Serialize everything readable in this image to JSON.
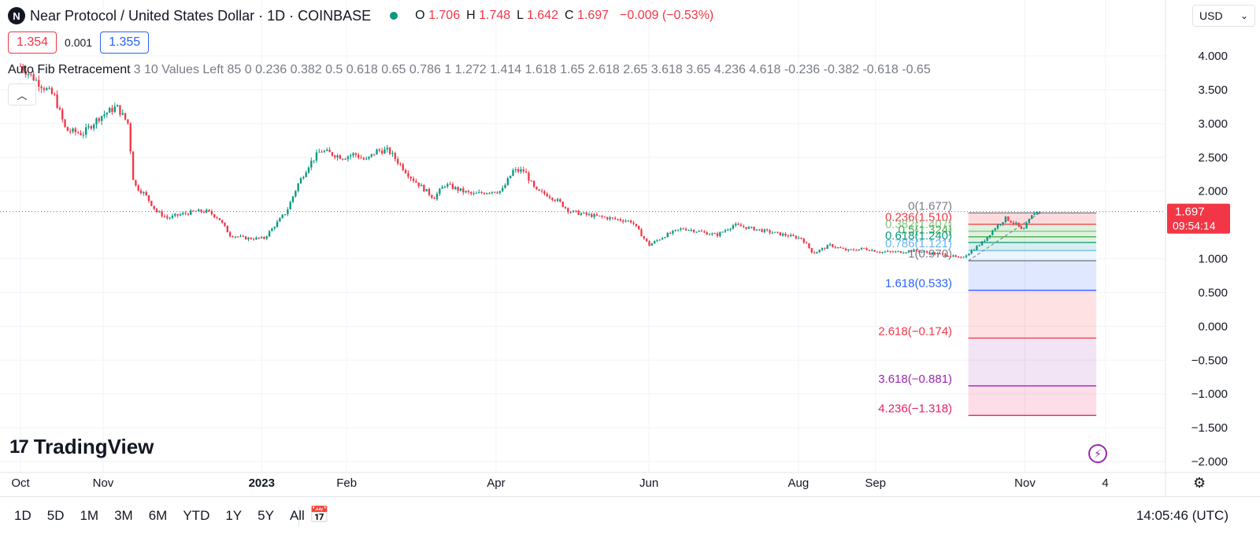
{
  "header": {
    "symbol_title": "Near Protocol / United States Dollar · 1D · COINBASE",
    "logo_letter": "N",
    "o_label": "O",
    "o_value": "1.706",
    "h_label": "H",
    "h_value": "1.748",
    "l_label": "L",
    "l_value": "1.642",
    "c_label": "C",
    "c_value": "1.697",
    "change": "−0.009 (−0.53%)",
    "currency": "USD"
  },
  "quote": {
    "bid": "1.354",
    "spread": "0.001",
    "ask": "1.355"
  },
  "indicator": {
    "name": "Auto Fib Retracement",
    "params": "3 10 Values Left 85 0 0.236 0.382 0.5 0.618 0.65 0.786 1 1.272 1.414 1.618 1.65 2.618 2.65 3.618 3.65 4.236 4.618 -0.236 -0.382 -0.618 -0.65"
  },
  "branding": {
    "wordmark": "TradingView",
    "mark": "17"
  },
  "time_ranges": [
    "1D",
    "5D",
    "1M",
    "3M",
    "6M",
    "YTD",
    "1Y",
    "5Y",
    "All"
  ],
  "clock": "14:05:46 (UTC)",
  "chart_data": {
    "type": "candlestick",
    "y_ticks": [
      "4.000",
      "3.500",
      "3.000",
      "2.500",
      "2.000",
      "1.000",
      "0.500",
      "0.000",
      "−0.500",
      "−1.000",
      "−1.500",
      "−2.000"
    ],
    "y_tick_values": [
      4.0,
      3.5,
      3.0,
      2.5,
      2.0,
      1.0,
      0.5,
      0.0,
      -0.5,
      -1.0,
      -1.5,
      -2.0
    ],
    "ylim": [
      -2.2,
      4.3
    ],
    "x_ticks": [
      {
        "label": "Oct",
        "t": 0,
        "bold": false
      },
      {
        "label": "Nov",
        "t": 0.073,
        "bold": false
      },
      {
        "label": "2023",
        "t": 0.213,
        "bold": true
      },
      {
        "label": "Feb",
        "t": 0.288,
        "bold": false
      },
      {
        "label": "Apr",
        "t": 0.42,
        "bold": false
      },
      {
        "label": "Jun",
        "t": 0.555,
        "bold": false
      },
      {
        "label": "Aug",
        "t": 0.687,
        "bold": false
      },
      {
        "label": "Sep",
        "t": 0.755,
        "bold": false
      },
      {
        "label": "Nov",
        "t": 0.887,
        "bold": false
      },
      {
        "label": "4",
        "t": 0.958,
        "bold": false
      }
    ],
    "last_price": {
      "value": 1.697,
      "label": "1.697",
      "countdown": "09:54:14",
      "color": "#f23645"
    },
    "colors": {
      "up": "#089981",
      "down": "#f23645"
    },
    "price_path": [
      [
        0,
        3.85
      ],
      [
        0.015,
        3.62
      ],
      [
        0.03,
        3.4
      ],
      [
        0.04,
        2.9
      ],
      [
        0.055,
        2.85
      ],
      [
        0.07,
        3.1
      ],
      [
        0.085,
        3.25
      ],
      [
        0.095,
        3.0
      ],
      [
        0.1,
        2.1
      ],
      [
        0.11,
        1.95
      ],
      [
        0.12,
        1.7
      ],
      [
        0.13,
        1.6
      ],
      [
        0.14,
        1.65
      ],
      [
        0.155,
        1.7
      ],
      [
        0.165,
        1.7
      ],
      [
        0.175,
        1.6
      ],
      [
        0.185,
        1.35
      ],
      [
        0.2,
        1.3
      ],
      [
        0.215,
        1.3
      ],
      [
        0.225,
        1.5
      ],
      [
        0.235,
        1.7
      ],
      [
        0.245,
        2.1
      ],
      [
        0.255,
        2.4
      ],
      [
        0.265,
        2.6
      ],
      [
        0.275,
        2.55
      ],
      [
        0.285,
        2.5
      ],
      [
        0.295,
        2.55
      ],
      [
        0.305,
        2.45
      ],
      [
        0.315,
        2.6
      ],
      [
        0.325,
        2.6
      ],
      [
        0.335,
        2.4
      ],
      [
        0.345,
        2.2
      ],
      [
        0.355,
        2.05
      ],
      [
        0.365,
        1.9
      ],
      [
        0.375,
        2.1
      ],
      [
        0.39,
        2.0
      ],
      [
        0.4,
        1.95
      ],
      [
        0.415,
        2.0
      ],
      [
        0.425,
        2.0
      ],
      [
        0.435,
        2.3
      ],
      [
        0.445,
        2.3
      ],
      [
        0.455,
        2.0
      ],
      [
        0.465,
        1.95
      ],
      [
        0.475,
        1.85
      ],
      [
        0.485,
        1.7
      ],
      [
        0.5,
        1.65
      ],
      [
        0.52,
        1.6
      ],
      [
        0.54,
        1.55
      ],
      [
        0.555,
        1.2
      ],
      [
        0.57,
        1.35
      ],
      [
        0.585,
        1.45
      ],
      [
        0.6,
        1.4
      ],
      [
        0.615,
        1.35
      ],
      [
        0.63,
        1.5
      ],
      [
        0.645,
        1.45
      ],
      [
        0.66,
        1.4
      ],
      [
        0.675,
        1.35
      ],
      [
        0.69,
        1.3
      ],
      [
        0.7,
        1.08
      ],
      [
        0.715,
        1.2
      ],
      [
        0.73,
        1.12
      ],
      [
        0.745,
        1.15
      ],
      [
        0.76,
        1.1
      ],
      [
        0.775,
        1.1
      ],
      [
        0.79,
        1.12
      ],
      [
        0.805,
        1.08
      ],
      [
        0.82,
        1.05
      ],
      [
        0.83,
        1.0
      ],
      [
        0.84,
        1.12
      ],
      [
        0.85,
        1.25
      ],
      [
        0.86,
        1.45
      ],
      [
        0.87,
        1.6
      ],
      [
        0.88,
        1.5
      ],
      [
        0.885,
        1.4
      ],
      [
        0.89,
        1.55
      ],
      [
        0.895,
        1.68
      ],
      [
        0.9,
        1.697
      ]
    ],
    "fib": {
      "x_start_t": 0.837,
      "x_end_t": 0.95,
      "label_t": 0.822,
      "levels": [
        {
          "label": "0(1.677)",
          "value": 1.677,
          "color": "#787b86",
          "fill": "rgba(242,54,69,0.18)"
        },
        {
          "label": "0.236(1.510)",
          "value": 1.51,
          "color": "#f23645",
          "fill": "rgba(76,175,80,0.18)"
        },
        {
          "label": "0.382(1.407)",
          "value": 1.407,
          "color": "#81c784",
          "fill": "rgba(76,175,80,0.18)"
        },
        {
          "label": "0.5(1.324)",
          "value": 1.324,
          "color": "#4caf50",
          "fill": "rgba(76,175,80,0.18)"
        },
        {
          "label": "0.618(1.240)",
          "value": 1.24,
          "color": "#089981",
          "fill": "rgba(0,150,136,0.15)"
        },
        {
          "label": "0.786(1.121)",
          "value": 1.121,
          "color": "#64b5f6",
          "fill": "rgba(100,181,246,0.12)"
        },
        {
          "label": "1(0.970)",
          "value": 0.97,
          "color": "#787b86",
          "fill": "rgba(41,98,255,0.15)"
        },
        {
          "label": "1.618(0.533)",
          "value": 0.533,
          "color": "#2962ff",
          "fill": "rgba(242,54,69,0.15)"
        },
        {
          "label": "2.618(−0.174)",
          "value": -0.174,
          "color": "#f23645",
          "fill": "rgba(156,39,176,0.13)"
        },
        {
          "label": "3.618(−0.881)",
          "value": -0.881,
          "color": "#9c27b0",
          "fill": "rgba(233,30,99,0.15)"
        },
        {
          "label": "4.236(−1.318)",
          "value": -1.318,
          "color": "#e91e63",
          "fill": null
        }
      ]
    }
  }
}
